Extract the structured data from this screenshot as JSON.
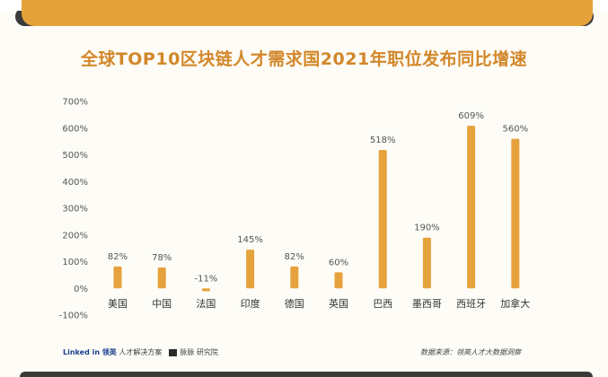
{
  "title": "全球TOP10区块链人才需求国2021年职位发布同比增速",
  "footer": {
    "logo_left_brand": "Linked in 领英",
    "logo_left_sub": "人才解决方案",
    "logo_right": "脉脉 研究院",
    "source": "数据来源：领英人才大数据洞察"
  },
  "colors": {
    "bar": "#e6a23c",
    "title": "#d2872a",
    "accent_top": "#e5a23a",
    "dark_bar": "#3a3a3a"
  },
  "chart_data": {
    "type": "bar",
    "categories": [
      "美国",
      "中国",
      "法国",
      "印度",
      "德国",
      "英国",
      "巴西",
      "墨西哥",
      "西班牙",
      "加拿大"
    ],
    "values": [
      82,
      78,
      -11,
      145,
      82,
      60,
      518,
      190,
      609,
      560
    ],
    "value_labels": [
      "82%",
      "78%",
      "-11%",
      "145%",
      "82%",
      "60%",
      "518%",
      "190%",
      "609%",
      "560%"
    ],
    "ylim": [
      -100,
      700
    ],
    "yticks": [
      -100,
      0,
      100,
      200,
      300,
      400,
      500,
      600,
      700
    ],
    "ytick_labels": [
      "-100%",
      "0%",
      "100%",
      "200%",
      "300%",
      "400%",
      "500%",
      "600%",
      "700%"
    ],
    "grid": false
  }
}
